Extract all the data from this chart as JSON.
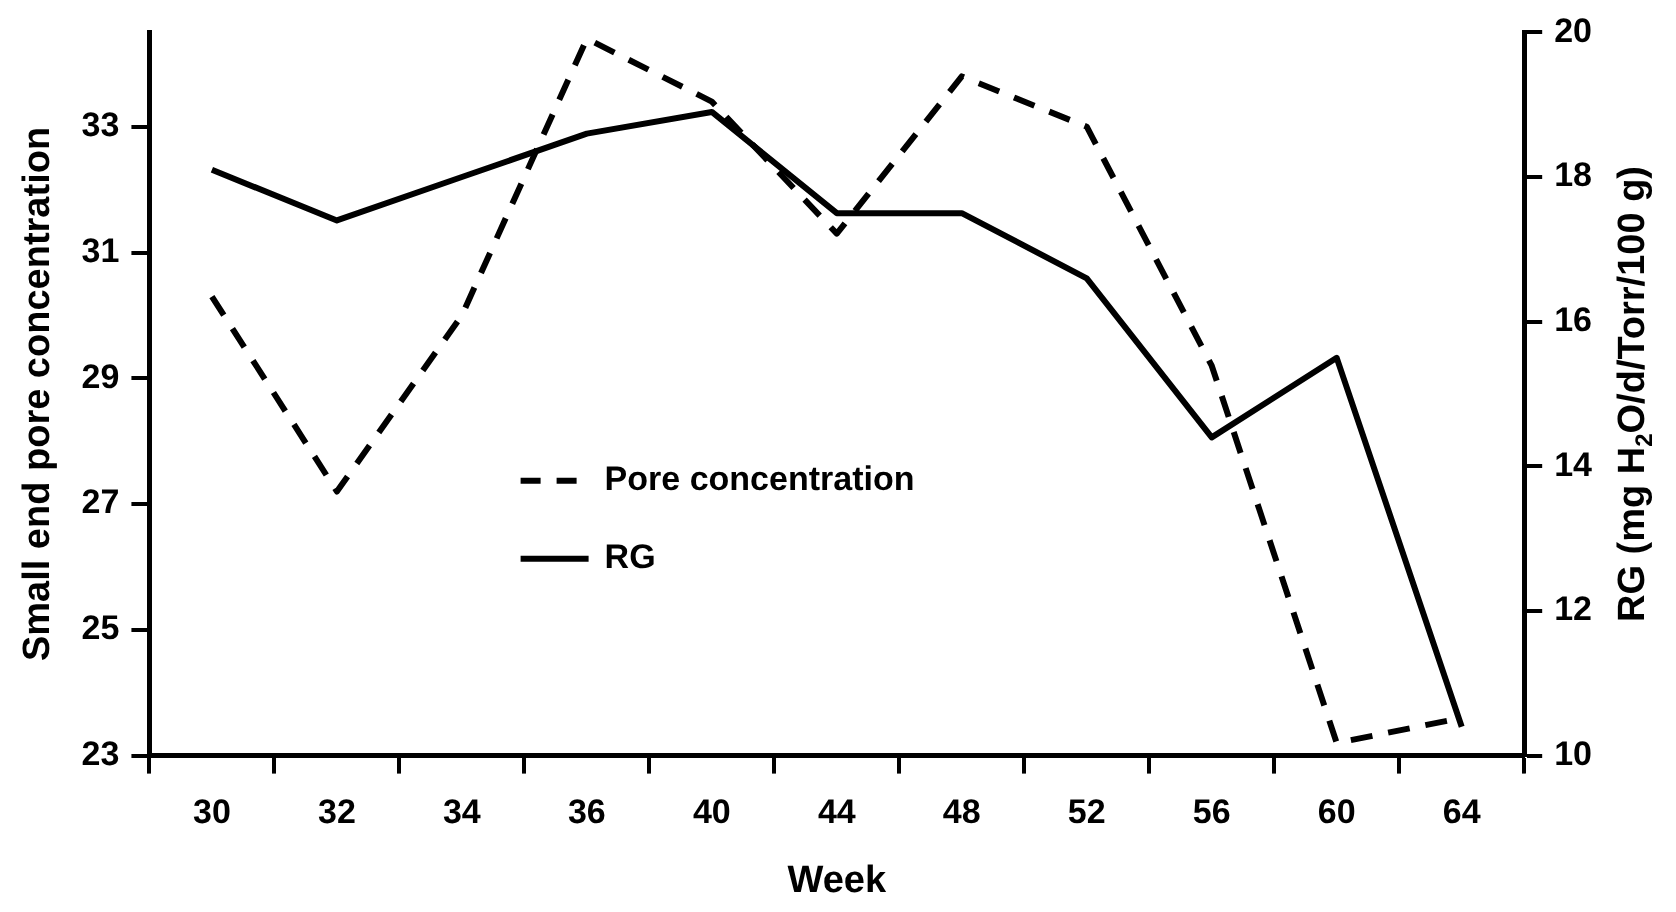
{
  "chart_data": {
    "type": "line",
    "categories": [
      "30",
      "32",
      "34",
      "36",
      "40",
      "44",
      "48",
      "52",
      "56",
      "60",
      "64"
    ],
    "xlabel": "Week",
    "ylabel": "Small end pore concentration",
    "y2label": "RG (mg H$_{2}$O/d/Torr/100 g)",
    "series": [
      {
        "name": "Pore concentration",
        "color": "#000000",
        "line_style": "dashed",
        "values": [
          30.3,
          27.2,
          30.0,
          34.4,
          33.4,
          31.3,
          33.8,
          33.0,
          29.2,
          23.2,
          23.6
        ]
      },
      {
        "name": "RG",
        "color": "#000000",
        "line_style": "solid",
        "axis": "y2",
        "values": [
          18.1,
          17.4,
          18.0,
          18.6,
          18.9,
          17.5,
          17.5,
          16.6,
          14.4,
          15.5,
          10.4
        ]
      }
    ],
    "ylim": [
      23,
      34.5
    ],
    "yticks": [
      23,
      25,
      27,
      29,
      31,
      33
    ],
    "y2lim": [
      10,
      20
    ],
    "y2ticks": [
      10,
      12,
      14,
      16,
      18,
      20
    ],
    "grid": false,
    "legend": "center left",
    "marker": "none"
  }
}
